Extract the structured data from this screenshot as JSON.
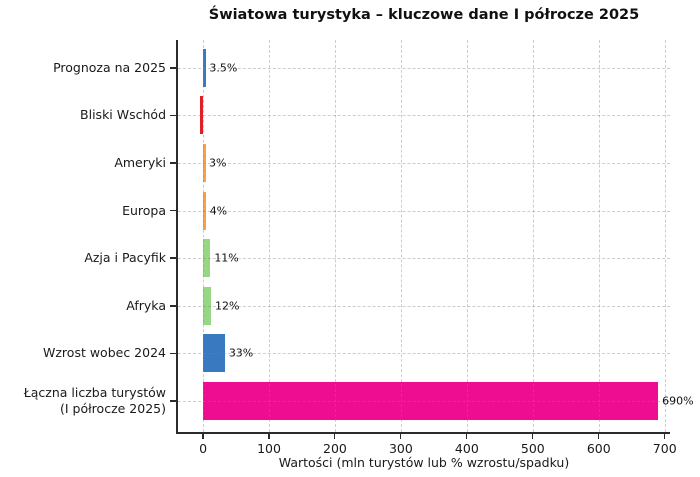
{
  "title": "Światowa turystyka – kluczowe dane I półrocze 2025",
  "background": "#ffffff",
  "chart_data": {
    "type": "bar",
    "orientation": "horizontal",
    "title": "Światowa turystyka – kluczowe dane I półrocze 2025",
    "xlabel": "Wartości (mln turystów lub % wzrostu/spadku)",
    "ylabel": "",
    "categories": [
      "Prognoza na 2025",
      "Bliski Wschód",
      "Ameryki",
      "Europa",
      "Azja i Pacyfik",
      "Afryka",
      "Wzrost wobec 2024",
      "Łączna liczba turystów\n(I półrocze 2025)"
    ],
    "values": [
      3.5,
      -1,
      3,
      4,
      11,
      12,
      33,
      690
    ],
    "bar_labels": [
      "3.5%",
      "",
      "3%",
      "4%",
      "11%",
      "12%",
      "33%",
      "690%"
    ],
    "bar_colors": [
      "#3879bf",
      "#e01f26",
      "#f9a04b",
      "#f9a04b",
      "#95d783",
      "#95d783",
      "#3879bf",
      "#ee0d90"
    ],
    "xticks": [
      0,
      100,
      200,
      300,
      400,
      500,
      600,
      700
    ],
    "xlim": [
      -38,
      708
    ],
    "grid": "dashed, both axes, drawn over bars",
    "legend": "none",
    "colors": {
      "axis": "#2b2b2b",
      "text": "#1a1a1a",
      "grid": "#c8c8c8",
      "background": "#ffffff"
    }
  }
}
